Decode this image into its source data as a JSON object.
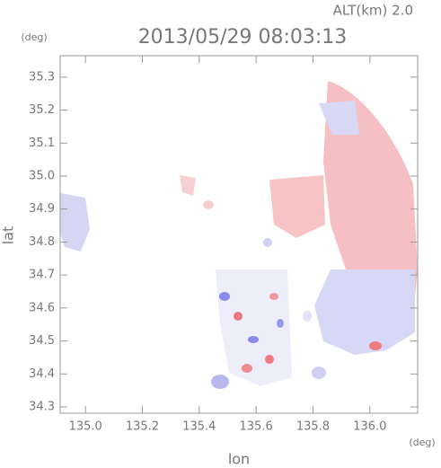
{
  "chart_data": {
    "type": "map",
    "title": "2013/05/29 08:03:13",
    "annotation": "ALT(km) 2.0",
    "x_label": "lon",
    "y_label": "lat",
    "x_unit": "(deg)",
    "y_unit": "(deg)",
    "xlim": [
      134.911,
      136.168
    ],
    "ylim": [
      34.281,
      35.365
    ],
    "xticks": [
      {
        "value": 135,
        "label": "135.0"
      },
      135.2,
      135.4,
      135.6,
      135.8,
      {
        "value": 136,
        "label": "136.0"
      }
    ],
    "yticks": [
      34.3,
      34.4,
      34.5,
      34.6,
      34.7,
      34.8,
      34.9,
      {
        "value": 35,
        "label": "35.0"
      },
      35.1,
      35.2,
      35.3
    ]
  }
}
